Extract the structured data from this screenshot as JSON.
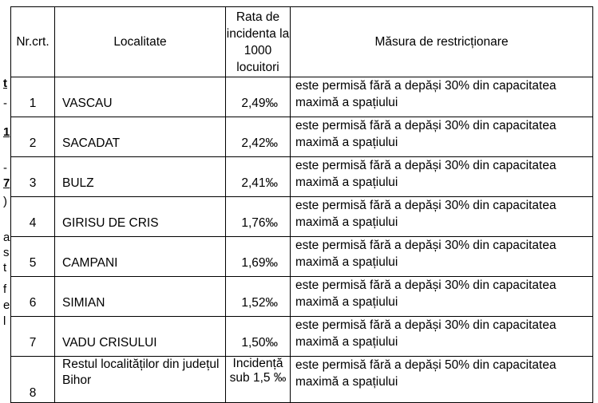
{
  "margin_marks": [
    "t",
    "-",
    "1",
    "-",
    "7",
    ")",
    "a",
    "s",
    "t",
    "f",
    "e",
    "l"
  ],
  "table": {
    "headers": {
      "nr": "Nr.crt.",
      "loc": "Localitate",
      "rate": "Rata de incidenta la 1000 locuitori",
      "measure": "Măsura de restricționare"
    },
    "rows": [
      {
        "nr": "1",
        "loc": "VASCAU",
        "rate": "2,49‰",
        "measure": "este permisă fără a depăși 30% din capacitatea maximă a spațiului"
      },
      {
        "nr": "2",
        "loc": "SACADAT",
        "rate": "2,42‰",
        "measure": "este permisă fără a depăși 30% din capacitatea maximă a spațiului"
      },
      {
        "nr": "3",
        "loc": "BULZ",
        "rate": "2,41‰",
        "measure": "este permisă fără a depăși 30% din capacitatea maximă a spațiului"
      },
      {
        "nr": "4",
        "loc": "GIRISU DE CRIS",
        "rate": "1,76‰",
        "measure": "este permisă fără a depăși 30% din capacitatea maximă a spațiului"
      },
      {
        "nr": "5",
        "loc": "CAMPANI",
        "rate": "1,69‰",
        "measure": "este permisă fără a depăși 30% din capacitatea maximă a spațiului"
      },
      {
        "nr": "6",
        "loc": "SIMIAN",
        "rate": "1,52‰",
        "measure": "este permisă fără a depăși 30% din capacitatea maximă a spațiului"
      },
      {
        "nr": "7",
        "loc": "VADU CRISULUI",
        "rate": "1,50‰",
        "measure": "este permisă fără a depăși 30% din capacitatea maximă a spațiului"
      },
      {
        "nr": "8",
        "loc": "Restul localităților din județul Bihor",
        "rate": "Incidență sub 1,5 ‰",
        "measure": "este permisă fără a depăși 50% din capacitatea maximă a spațiului"
      }
    ]
  }
}
